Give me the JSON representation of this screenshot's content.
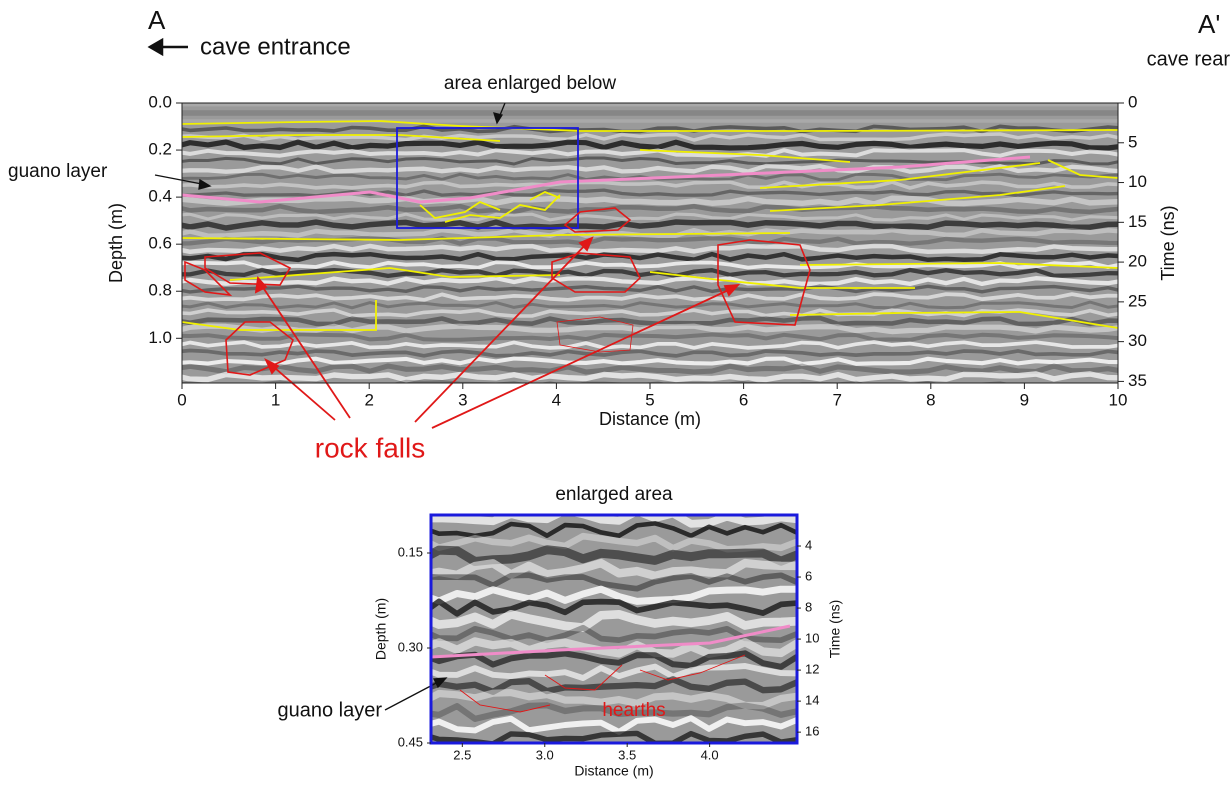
{
  "chart_data": [
    {
      "type": "radargram",
      "annotations": {
        "start_label": "A",
        "start_text": "cave entrance",
        "end_label": "A'",
        "end_text": "cave rear",
        "box_label": "area enlarged below",
        "layer_label": "guano layer",
        "feature_label": "rock falls"
      },
      "xlabel": "Distance (m)",
      "ylabel": "Depth (m)",
      "y2label": "Time (ns)",
      "xlim": [
        0,
        10
      ],
      "xticks": [
        0,
        1,
        2,
        3,
        4,
        5,
        6,
        7,
        8,
        9,
        10
      ],
      "ylim": [
        0,
        1.19
      ],
      "yticks": [
        {
          "value": 0,
          "label": "0.0"
        },
        0.2,
        0.4,
        0.6,
        0.8,
        {
          "value": 1,
          "label": "1.0"
        }
      ],
      "y2lim": [
        0,
        35.2
      ],
      "y2ticks": [
        0,
        5,
        10,
        15,
        20,
        25,
        30,
        35
      ]
    },
    {
      "type": "radargram",
      "title": "enlarged area",
      "annotations": {
        "layer_label": "guano layer",
        "feature_label": "hearths"
      },
      "xlabel": "Distance (m)",
      "ylabel": "Depth (m)",
      "y2label": "Time (ns)",
      "xlim": [
        2.31,
        4.53
      ],
      "xticks": [
        2.5,
        {
          "value": 3,
          "label": "3.0"
        },
        3.5,
        {
          "value": 4,
          "label": "4.0"
        }
      ],
      "ylim": [
        0.09,
        0.45
      ],
      "yticks": [
        0.15,
        {
          "value": 0.3,
          "label": "0.30"
        },
        0.45
      ],
      "y2lim": [
        2.0,
        16.7
      ],
      "y2ticks": [
        4,
        6,
        8,
        10,
        12,
        14,
        16
      ]
    }
  ]
}
